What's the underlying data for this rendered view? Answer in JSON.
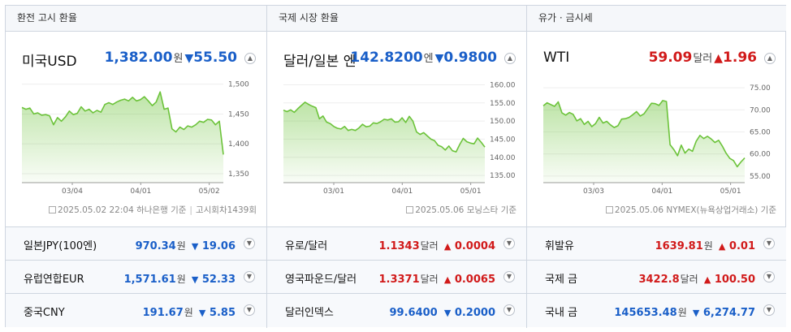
{
  "columns": [
    {
      "header": "환전 고시 환율",
      "title": "미국USD",
      "value": "1,382.00",
      "unit": "원",
      "direction": "down",
      "arrow": "▼",
      "change": "55.50",
      "source": {
        "date": "2025.05.02 22:04",
        "provider": "하나은행 기준",
        "extra": "고시회차1439회"
      },
      "chart_data": {
        "type": "area",
        "xlabels": [
          "03/04",
          "04/01",
          "05/02"
        ],
        "yticks": [
          "1,500",
          "1,450",
          "1,400",
          "1,350"
        ],
        "ylim": [
          1335,
          1505
        ],
        "values": [
          1461,
          1458,
          1460,
          1450,
          1452,
          1448,
          1449,
          1447,
          1432,
          1444,
          1438,
          1445,
          1455,
          1449,
          1451,
          1462,
          1455,
          1458,
          1452,
          1456,
          1453,
          1466,
          1469,
          1466,
          1470,
          1473,
          1475,
          1472,
          1478,
          1472,
          1474,
          1479,
          1472,
          1464,
          1470,
          1487,
          1458,
          1460,
          1425,
          1420,
          1428,
          1424,
          1430,
          1428,
          1432,
          1438,
          1436,
          1441,
          1440,
          1432,
          1438,
          1382
        ]
      },
      "chart_color": "#6cc33a"
    },
    {
      "header": "국제 시장 환율",
      "title": "달러/일본 엔",
      "value": "142.8200",
      "unit": "엔",
      "direction": "down",
      "arrow": "▼",
      "change": "0.9800",
      "source": {
        "date": "2025.05.06",
        "provider": "모닝스타 기준",
        "extra": ""
      },
      "chart_data": {
        "type": "area",
        "xlabels": [
          "03/01",
          "04/01",
          "05/01"
        ],
        "yticks": [
          "160.00",
          "155.00",
          "150.00",
          "145.00",
          "140.00",
          "135.00"
        ],
        "ylim": [
          133,
          161
        ],
        "values": [
          153.0,
          152.6,
          153.1,
          152.4,
          153.4,
          154.3,
          155.2,
          154.6,
          154.1,
          153.7,
          150.6,
          151.4,
          149.7,
          149.3,
          148.5,
          148.0,
          147.8,
          148.5,
          147.4,
          147.7,
          147.4,
          148.1,
          149.1,
          148.4,
          148.6,
          149.5,
          149.3,
          149.8,
          150.5,
          150.3,
          150.6,
          149.7,
          149.8,
          150.9,
          149.6,
          151.3,
          150.0,
          147.0,
          146.3,
          146.8,
          145.9,
          145.0,
          144.6,
          143.3,
          142.9,
          142.0,
          143.1,
          141.8,
          141.5,
          143.5,
          145.2,
          144.3,
          143.9,
          143.7,
          145.3,
          144.1,
          142.8
        ]
      },
      "chart_color": "#6cc33a"
    },
    {
      "header": "유가 · 금시세",
      "title": "WTI",
      "value": "59.09",
      "unit": "달러",
      "direction": "up",
      "arrow": "▲",
      "change": "1.96",
      "source": {
        "date": "2025.05.06",
        "provider": "NYMEX(뉴욕상업거래소) 기준",
        "extra": ""
      },
      "chart_data": {
        "type": "area",
        "xlabels": [
          "03/03",
          "04/01",
          "05/01"
        ],
        "yticks": [
          "75.00",
          "70.00",
          "65.00",
          "60.00",
          "55.00"
        ],
        "ylim": [
          53.5,
          76.5
        ],
        "values": [
          70.9,
          71.6,
          71.2,
          70.8,
          71.8,
          69.3,
          68.8,
          69.4,
          69.0,
          67.5,
          68.0,
          66.7,
          67.4,
          66.2,
          66.9,
          68.3,
          67.0,
          67.4,
          66.6,
          66.0,
          66.4,
          67.9,
          68.0,
          68.3,
          68.9,
          69.6,
          68.6,
          69.1,
          70.3,
          71.5,
          71.4,
          71.0,
          72.1,
          71.9,
          62.1,
          61.0,
          59.6,
          62.0,
          60.2,
          61.1,
          60.6,
          62.9,
          64.2,
          63.5,
          64.0,
          63.4,
          62.6,
          63.1,
          61.8,
          60.2,
          59.0,
          58.5,
          57.1,
          58.2,
          59.09
        ]
      },
      "chart_color": "#6cc33a"
    }
  ],
  "rows": [
    [
      {
        "name": "일본JPY(100엔)",
        "value": "970.34",
        "unit": "원",
        "direction": "down",
        "arrow": "▼",
        "change": "19.06"
      },
      {
        "name": "유로/달러",
        "value": "1.1343",
        "unit": "달러",
        "direction": "up",
        "arrow": "▲",
        "change": "0.0004"
      },
      {
        "name": "휘발유",
        "value": "1639.81",
        "unit": "원",
        "direction": "up",
        "arrow": "▲",
        "change": "0.01"
      }
    ],
    [
      {
        "name": "유럽연합EUR",
        "value": "1,571.61",
        "unit": "원",
        "direction": "down",
        "arrow": "▼",
        "change": "52.33"
      },
      {
        "name": "영국파운드/달러",
        "value": "1.3371",
        "unit": "달러",
        "direction": "up",
        "arrow": "▲",
        "change": "0.0065"
      },
      {
        "name": "국제 금",
        "value": "3422.8",
        "unit": "달러",
        "direction": "up",
        "arrow": "▲",
        "change": "100.50"
      }
    ],
    [
      {
        "name": "중국CNY",
        "value": "191.67",
        "unit": "원",
        "direction": "down",
        "arrow": "▼",
        "change": "5.85"
      },
      {
        "name": "달러인덱스",
        "value": "99.6400",
        "unit": "",
        "direction": "down",
        "arrow": "▼",
        "change": "0.2000"
      },
      {
        "name": "국내 금",
        "value": "145653.48",
        "unit": "원",
        "direction": "down",
        "arrow": "▼",
        "change": "6,274.77"
      }
    ]
  ],
  "icons": {
    "toggle": "chevron-circle-icon",
    "source": "document-icon"
  },
  "colors": {
    "down": "#1a5fc8",
    "up": "#d11a1a",
    "chart_line": "#6cc33a"
  }
}
